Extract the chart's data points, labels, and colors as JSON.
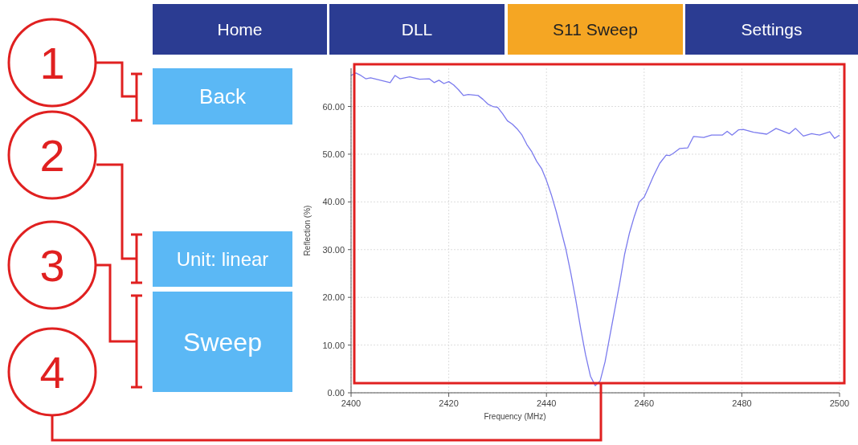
{
  "chart_data": {
    "type": "line",
    "xlabel": "Frequency (MHz)",
    "ylabel": "Reflection (%)",
    "xlim": [
      2400,
      2500
    ],
    "xticks": [
      2400,
      2420,
      2440,
      2460,
      2480,
      2500
    ],
    "ylim": [
      0,
      68
    ],
    "yticks": [
      {
        "value": 0,
        "label": "0.00"
      },
      {
        "value": 10,
        "label": "10.00"
      },
      {
        "value": 20,
        "label": "20.00"
      },
      {
        "value": 30,
        "label": "30.00"
      },
      {
        "value": 40,
        "label": "40.00"
      },
      {
        "value": 50,
        "label": "50.00"
      },
      {
        "value": 60,
        "label": "60.00"
      }
    ],
    "grid": true,
    "marker": "none",
    "line_style": "solid",
    "annotations": [
      "Home",
      "DLL",
      "S11 Sweep",
      "Settings",
      "Back",
      "Unit: linear",
      "Sweep",
      "1",
      "2",
      "3",
      "4"
    ],
    "series": [
      {
        "color": "#7b7bee",
        "x": [
          2400,
          2401,
          2402,
          2403,
          2404,
          2406,
          2408,
          2409,
          2410,
          2412,
          2414,
          2416,
          2417,
          2418,
          2419,
          2420,
          2421,
          2422,
          2423,
          2424,
          2426,
          2427,
          2428,
          2429,
          2430,
          2431,
          2432,
          2433,
          2434,
          2435,
          2436,
          2437,
          2438,
          2439,
          2440,
          2441,
          2442,
          2443,
          2444,
          2445,
          2446,
          2447,
          2448,
          2449,
          2450,
          2451,
          2452,
          2453,
          2454,
          2455,
          2456,
          2457,
          2458,
          2459,
          2460,
          2460.8,
          2461.9,
          2463.2,
          2464.5,
          2465.2,
          2466,
          2467.3,
          2468.9,
          2470.1,
          2472.2,
          2473.8,
          2476,
          2477,
          2478,
          2479.3,
          2480.3,
          2482.4,
          2485.1,
          2487,
          2489.7,
          2491,
          2492.6,
          2494.3,
          2495.9,
          2498,
          2499,
          2500
        ],
        "values": [
          66.5,
          67,
          66.5,
          65.8,
          66,
          65.5,
          65,
          66.5,
          65.8,
          66.2,
          65.7,
          65.8,
          65,
          65.5,
          64.8,
          65.2,
          64.5,
          63.5,
          62.3,
          62.5,
          62.3,
          61.5,
          60.5,
          60,
          59.8,
          58.5,
          57,
          56.3,
          55.3,
          54,
          52,
          50.5,
          48.5,
          47,
          44.5,
          41.5,
          38,
          34,
          30,
          25,
          19.5,
          13.5,
          8,
          3.5,
          1.5,
          2.5,
          6.5,
          12,
          17.5,
          23,
          29,
          33.5,
          37,
          40,
          41,
          42.8,
          45.4,
          48.1,
          49.8,
          49.7,
          50.2,
          51.2,
          51.3,
          53.7,
          53.5,
          54,
          54,
          54.8,
          54,
          55.1,
          55.2,
          54.6,
          54.2,
          55.4,
          54.3,
          55.4,
          53.8,
          54.3,
          54,
          54.7,
          53.3,
          54
        ]
      }
    ]
  }
}
